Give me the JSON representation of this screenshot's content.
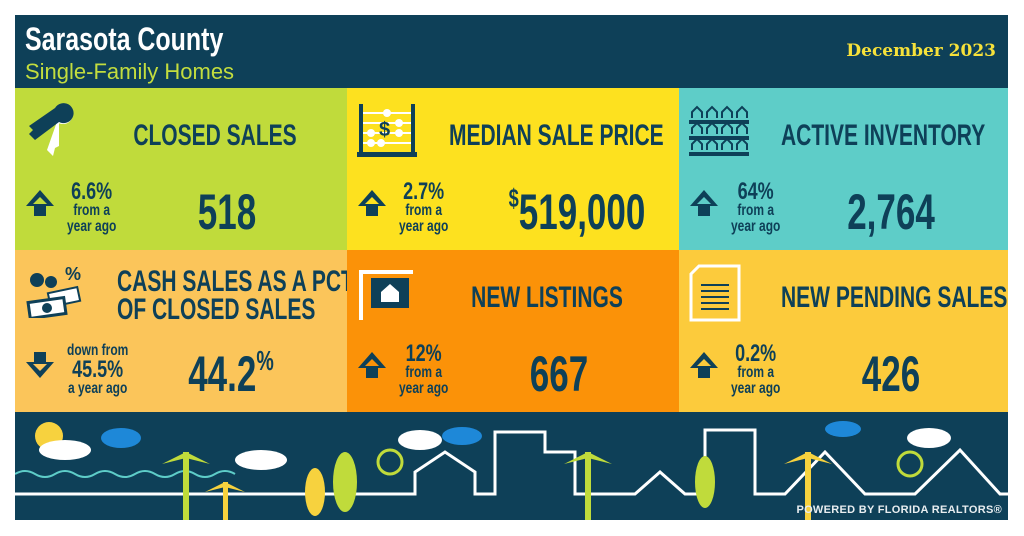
{
  "header": {
    "title": "Sarasota County",
    "subtitle": "Single-Family Homes",
    "date": "December 2023"
  },
  "colors": {
    "navy": "#0e4058",
    "green": "#c0db3b",
    "yellow": "#fde11f",
    "teal": "#5ecdc8",
    "light_orange": "#fbc55a",
    "orange": "#fb9208",
    "gold": "#fccb3c"
  },
  "tiles": [
    {
      "title": "CLOSED SALES",
      "value": "518",
      "change": "6.6%",
      "change_text1": "from a",
      "change_text2": "year ago",
      "direction": "up",
      "icon": "keys-icon"
    },
    {
      "title": "MEDIAN SALE PRICE",
      "value_prefix": "$",
      "value": "519,000",
      "change": "2.7%",
      "change_text1": "from a",
      "change_text2": "year ago",
      "direction": "up",
      "icon": "abacus-icon"
    },
    {
      "title": "ACTIVE INVENTORY",
      "value": "2,764",
      "change": "64%",
      "change_text1": "from a",
      "change_text2": "year ago",
      "direction": "up",
      "icon": "houses-grid-icon"
    },
    {
      "title_line1": "CASH SALES AS A PCT.",
      "title_line2": "OF CLOSED SALES",
      "value": "44.2",
      "value_suffix": "%",
      "change_pre": "down from",
      "change": "45.5%",
      "change_text2": "a year ago",
      "direction": "down",
      "icon": "cash-icon"
    },
    {
      "title": "NEW LISTINGS",
      "value": "667",
      "change": "12%",
      "change_text1": "from a",
      "change_text2": "year ago",
      "direction": "up",
      "icon": "for-sale-sign-icon"
    },
    {
      "title": "NEW PENDING SALES",
      "value": "426",
      "change": "0.2%",
      "change_text1": "from a",
      "change_text2": "year ago",
      "direction": "up",
      "icon": "document-icon"
    }
  ],
  "footer": {
    "powered_by": "POWERED BY FLORIDA REALTORS®"
  }
}
